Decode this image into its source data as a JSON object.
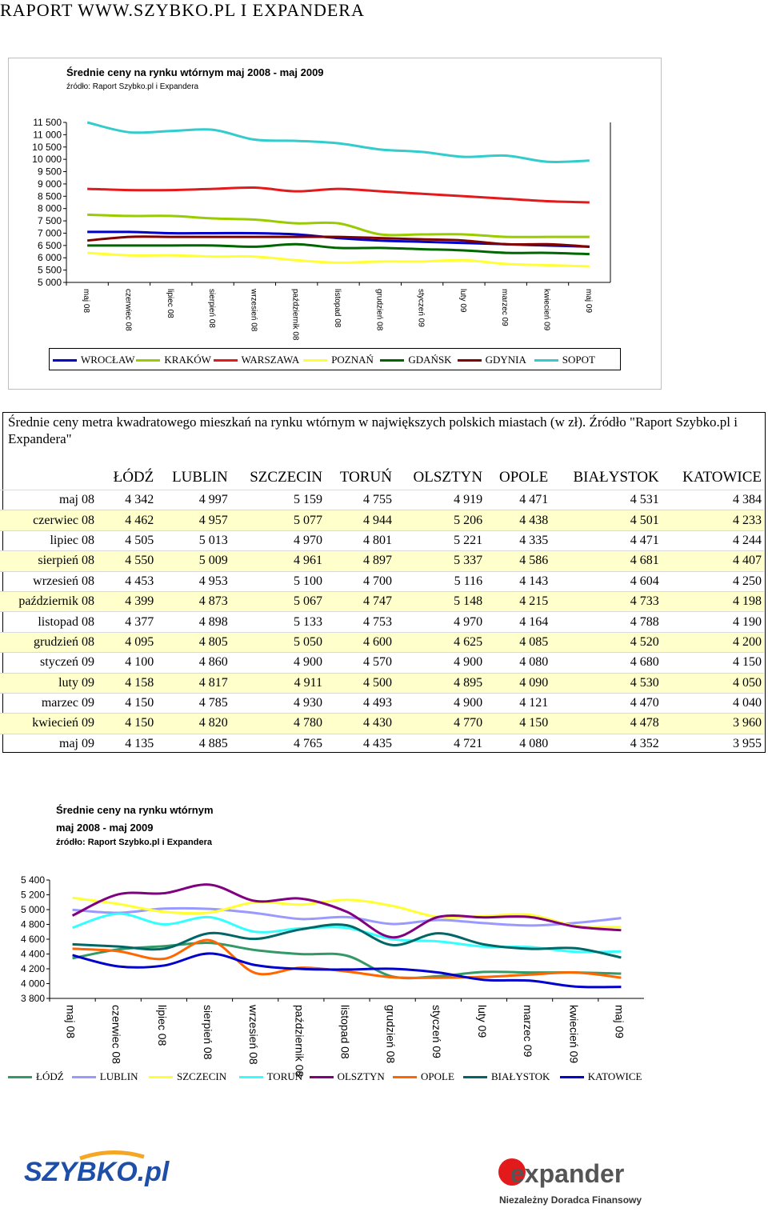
{
  "page": {
    "header": "RAPORT WWW.SZYBKO.PL I EXPANDERA"
  },
  "chart_data": [
    {
      "type": "line",
      "title": "Średnie ceny na rynku wtórnym maj 2008 - maj 2009",
      "source": "źródło: Raport Szybko.pl i Expandera",
      "categories": [
        "maj 08",
        "czerwiec 08",
        "lipiec 08",
        "sierpień 08",
        "wrzesień 08",
        "październik 08",
        "listopad 08",
        "grudzień 08",
        "styczeń 09",
        "luty 09",
        "marzec 09",
        "kwiecień 09",
        "maj 09"
      ],
      "ylim": [
        5000,
        11500
      ],
      "yticks": [
        "11 500",
        "11 000",
        "10 500",
        "10 000",
        "9 500",
        "9 000",
        "8 500",
        "8 000",
        "7 500",
        "7 000",
        "6 500",
        "6 000",
        "5 500",
        "5 000"
      ],
      "legend_position": "bottom",
      "series": [
        {
          "name": "WROCŁAW",
          "color": "#0000cc",
          "values": [
            7050,
            7050,
            7000,
            7000,
            7000,
            6950,
            6800,
            6700,
            6650,
            6600,
            6550,
            6500,
            6450
          ]
        },
        {
          "name": "KRAKÓW",
          "color": "#99cc00",
          "values": [
            7750,
            7700,
            7700,
            7600,
            7550,
            7400,
            7400,
            6950,
            6950,
            6950,
            6850,
            6850,
            6850
          ]
        },
        {
          "name": "WARSZAWA",
          "color": "#e31a1c",
          "values": [
            8800,
            8750,
            8750,
            8800,
            8850,
            8700,
            8800,
            8700,
            8600,
            8500,
            8400,
            8300,
            8250
          ]
        },
        {
          "name": "POZNAŃ",
          "color": "#ffff33",
          "values": [
            6200,
            6100,
            6100,
            6050,
            6050,
            5900,
            5800,
            5850,
            5850,
            5900,
            5750,
            5700,
            5650
          ]
        },
        {
          "name": "GDAŃSK",
          "color": "#006600",
          "values": [
            6500,
            6500,
            6500,
            6500,
            6450,
            6550,
            6400,
            6400,
            6350,
            6300,
            6200,
            6200,
            6150
          ]
        },
        {
          "name": "GDYNIA",
          "color": "#800000",
          "values": [
            6700,
            6850,
            6850,
            6850,
            6850,
            6850,
            6850,
            6800,
            6750,
            6700,
            6550,
            6550,
            6450
          ]
        },
        {
          "name": "SOPOT",
          "color": "#33cccc",
          "values": [
            11500,
            11100,
            11150,
            11200,
            10800,
            10750,
            10650,
            10400,
            10300,
            10100,
            10150,
            9900,
            9950
          ]
        }
      ]
    },
    {
      "type": "line",
      "title": "Średnie ceny na rynku wtórnym",
      "subtitle": "maj 2008 - maj 2009",
      "source": "źródło: Raport Szybko.pl i Expandera",
      "categories": [
        "maj 08",
        "czerwiec 08",
        "lipiec 08",
        "sierpień 08",
        "wrzesień 08",
        "październik 08",
        "listopad 08",
        "grudzień 08",
        "styczeń 09",
        "luty 09",
        "marzec 09",
        "kwiecień 09",
        "maj 09"
      ],
      "ylim": [
        3800,
        5400
      ],
      "yticks": [
        "5 400",
        "5 200",
        "5 000",
        "4 800",
        "4 600",
        "4 400",
        "4 200",
        "4 000",
        "3 800"
      ],
      "legend_position": "bottom",
      "series": [
        {
          "name": "ŁÓDŹ",
          "color": "#339966",
          "values": [
            4342,
            4462,
            4505,
            4550,
            4453,
            4399,
            4377,
            4095,
            4100,
            4158,
            4150,
            4150,
            4135
          ]
        },
        {
          "name": "LUBLIN",
          "color": "#9999ff",
          "values": [
            4997,
            4957,
            5013,
            5009,
            4953,
            4873,
            4898,
            4805,
            4860,
            4817,
            4785,
            4820,
            4885
          ]
        },
        {
          "name": "SZCZECIN",
          "color": "#ffff33",
          "values": [
            5159,
            5077,
            4970,
            4961,
            5100,
            5067,
            5133,
            5050,
            4900,
            4911,
            4930,
            4780,
            4765
          ]
        },
        {
          "name": "TORUŃ",
          "color": "#33ffff",
          "values": [
            4755,
            4944,
            4801,
            4897,
            4700,
            4747,
            4753,
            4600,
            4570,
            4500,
            4493,
            4430,
            4435
          ]
        },
        {
          "name": "OLSZTYN",
          "color": "#800080",
          "values": [
            4919,
            5206,
            5221,
            5337,
            5116,
            5148,
            4970,
            4625,
            4900,
            4895,
            4900,
            4770,
            4721
          ]
        },
        {
          "name": "OPOLE",
          "color": "#ff6600",
          "values": [
            4471,
            4438,
            4335,
            4586,
            4143,
            4215,
            4164,
            4085,
            4080,
            4090,
            4121,
            4150,
            4080
          ]
        },
        {
          "name": "BIAŁYSTOK",
          "color": "#006666",
          "values": [
            4531,
            4501,
            4471,
            4681,
            4604,
            4733,
            4788,
            4520,
            4680,
            4530,
            4470,
            4478,
            4352
          ]
        },
        {
          "name": "KATOWICE",
          "color": "#0000cc",
          "values": [
            4384,
            4233,
            4244,
            4407,
            4250,
            4198,
            4190,
            4200,
            4150,
            4050,
            4040,
            3960,
            3955
          ]
        }
      ]
    },
    {
      "type": "table",
      "title": "Średnie ceny metra kwadratowego mieszkań na rynku wtórnym w największych polskich miastach (w zł). Źródło \"Raport Szybko.pl i Expandera\"",
      "columns": [
        "ŁÓDŹ",
        "LUBLIN",
        "SZCZECIN",
        "TORUŃ",
        "OLSZTYN",
        "OPOLE",
        "BIAŁYSTOK",
        "KATOWICE"
      ],
      "rows": [
        {
          "label": "maj 08",
          "values": [
            "4 342",
            "4 997",
            "5 159",
            "4 755",
            "4 919",
            "4 471",
            "4 531",
            "4 384"
          ]
        },
        {
          "label": "czerwiec 08",
          "values": [
            "4 462",
            "4 957",
            "5 077",
            "4 944",
            "5 206",
            "4 438",
            "4 501",
            "4 233"
          ]
        },
        {
          "label": "lipiec 08",
          "values": [
            "4 505",
            "5 013",
            "4 970",
            "4 801",
            "5 221",
            "4 335",
            "4 471",
            "4 244"
          ]
        },
        {
          "label": "sierpień 08",
          "values": [
            "4 550",
            "5 009",
            "4 961",
            "4 897",
            "5 337",
            "4 586",
            "4 681",
            "4 407"
          ]
        },
        {
          "label": "wrzesień 08",
          "values": [
            "4 453",
            "4 953",
            "5 100",
            "4 700",
            "5 116",
            "4 143",
            "4 604",
            "4 250"
          ]
        },
        {
          "label": "październik 08",
          "values": [
            "4 399",
            "4 873",
            "5 067",
            "4 747",
            "5 148",
            "4 215",
            "4 733",
            "4 198"
          ]
        },
        {
          "label": "listopad 08",
          "values": [
            "4 377",
            "4 898",
            "5 133",
            "4 753",
            "4 970",
            "4 164",
            "4 788",
            "4 190"
          ]
        },
        {
          "label": "grudzień 08",
          "values": [
            "4 095",
            "4 805",
            "5 050",
            "4 600",
            "4 625",
            "4 085",
            "4 520",
            "4 200"
          ]
        },
        {
          "label": "styczeń 09",
          "values": [
            "4 100",
            "4 860",
            "4 900",
            "4 570",
            "4 900",
            "4 080",
            "4 680",
            "4 150"
          ]
        },
        {
          "label": "luty 09",
          "values": [
            "4 158",
            "4 817",
            "4 911",
            "4 500",
            "4 895",
            "4 090",
            "4 530",
            "4 050"
          ]
        },
        {
          "label": "marzec 09",
          "values": [
            "4 150",
            "4 785",
            "4 930",
            "4 493",
            "4 900",
            "4 121",
            "4 470",
            "4 040"
          ]
        },
        {
          "label": "kwiecień 09",
          "values": [
            "4 150",
            "4 820",
            "4 780",
            "4 430",
            "4 770",
            "4 150",
            "4 478",
            "3 960"
          ]
        },
        {
          "label": "maj 09",
          "values": [
            "4 135",
            "4 885",
            "4 765",
            "4 435",
            "4 721",
            "4 080",
            "4 352",
            "3 955"
          ]
        }
      ]
    }
  ],
  "logos": {
    "szybko": "SZYBKO.pl",
    "expander": "expander",
    "expander_tagline": "Niezależny Doradca Finansowy"
  }
}
